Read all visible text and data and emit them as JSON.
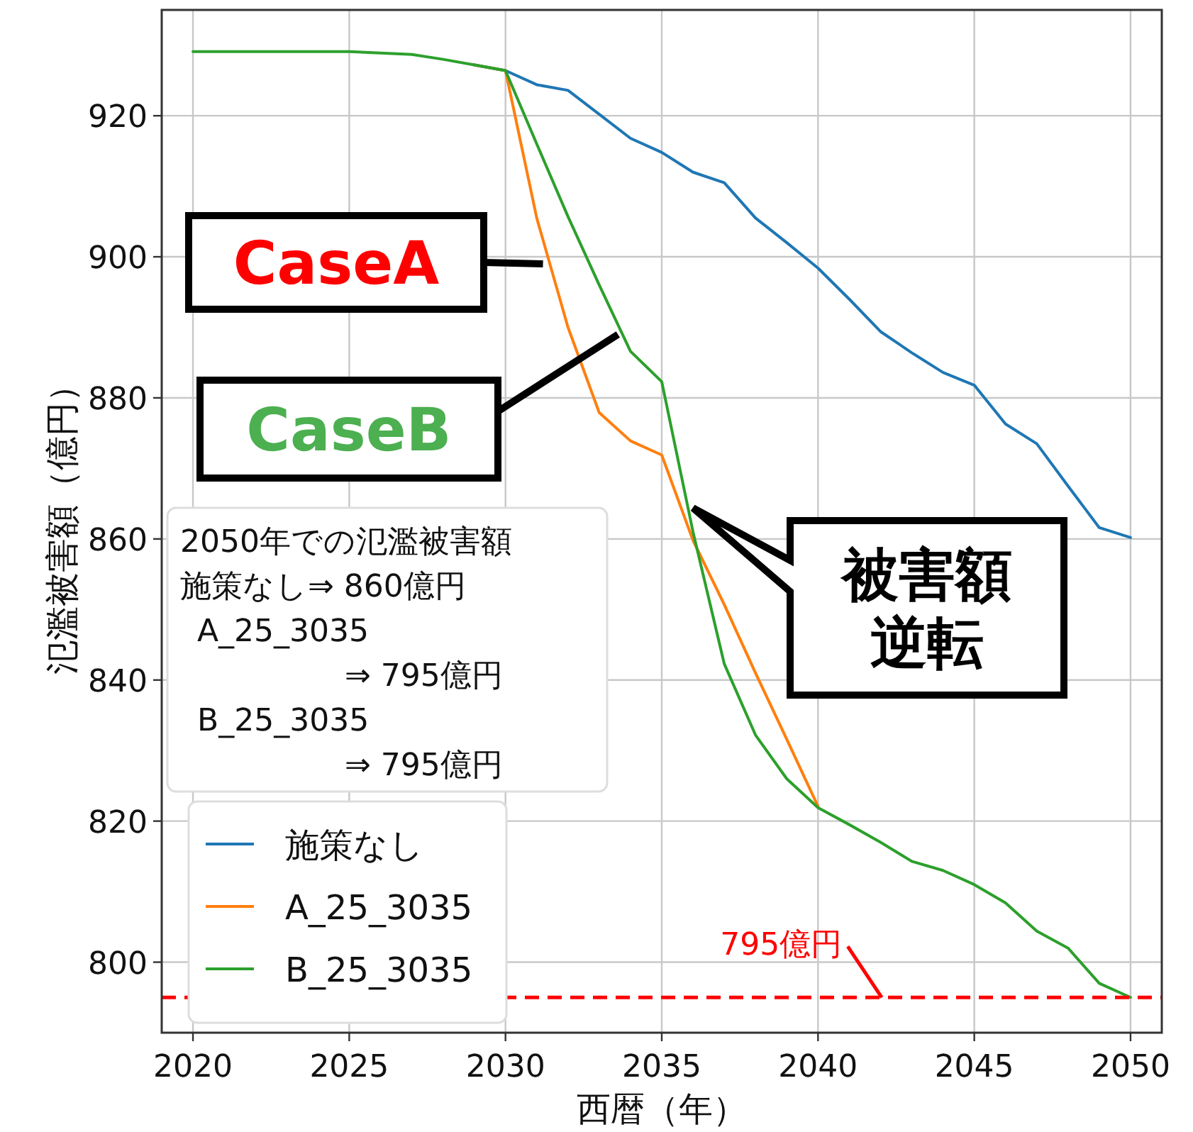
{
  "chart_data": {
    "type": "line",
    "xlabel": "西暦（年）",
    "ylabel": "氾濫被害額（億円）",
    "x": [
      2020,
      2021,
      2022,
      2023,
      2024,
      2025,
      2026,
      2027,
      2028,
      2029,
      2030,
      2031,
      2032,
      2033,
      2034,
      2035,
      2036,
      2037,
      2038,
      2039,
      2040,
      2041,
      2042,
      2043,
      2044,
      2045,
      2046,
      2047,
      2048,
      2049,
      2050
    ],
    "series": [
      {
        "name": "施策なし",
        "color": "#1f77b4",
        "values": [
          null,
          null,
          null,
          null,
          null,
          null,
          null,
          null,
          null,
          927.2,
          926.4,
          924.4,
          923.6,
          920.2,
          916.8,
          914.8,
          912,
          910.5,
          905.5,
          902,
          898.4,
          894,
          889.4,
          886.4,
          883.6,
          881.8,
          876.3,
          873.5,
          867.5,
          861.6,
          860.2
        ]
      },
      {
        "name": "A_25_3035",
        "color": "#ff7f0e",
        "values": [
          null,
          null,
          null,
          null,
          null,
          null,
          null,
          null,
          null,
          927.2,
          926.4,
          905.5,
          890,
          877.9,
          873.9,
          871.9,
          859.8,
          850.7,
          841,
          831.6,
          822.1,
          null,
          null,
          null,
          null,
          null,
          null,
          null,
          null,
          null,
          null
        ]
      },
      {
        "name": "B_25_3035",
        "color": "#2ca02c",
        "values": [
          929.1,
          929.1,
          929.1,
          929.1,
          929.1,
          929.1,
          928.9,
          928.7,
          928,
          927.2,
          926.4,
          916,
          905.7,
          896,
          886.6,
          882.3,
          861,
          842.3,
          832.2,
          826,
          821.9,
          819.5,
          817,
          814.3,
          813,
          811,
          808.4,
          804.4,
          802,
          797,
          795
        ]
      }
    ],
    "xlim": [
      2019,
      2051
    ],
    "ylim": [
      790,
      935
    ],
    "xticks": [
      2020,
      2025,
      2030,
      2035,
      2040,
      2045,
      2050
    ],
    "yticks": [
      800,
      820,
      840,
      860,
      880,
      900,
      920
    ],
    "grid": true,
    "legend": "bottom left",
    "ref_lines": [
      {
        "axis": "y",
        "value": 795,
        "label": "795億円",
        "color": "#ff0000",
        "line_style": "dashed"
      }
    ],
    "annotations": [
      {
        "text": "CaseA",
        "x": 2031.2,
        "y": 899
      },
      {
        "text": "CaseB",
        "x": 2033.6,
        "y": 889
      },
      {
        "text": "被害額逆転",
        "x": 2036,
        "y": 864.4
      },
      "2050年での氾濫被害額",
      "施策なし⇒ 860億円",
      "A_25_3035",
      "⇒ 795億円",
      "B_25_3035",
      "⇒ 795億円"
    ]
  }
}
